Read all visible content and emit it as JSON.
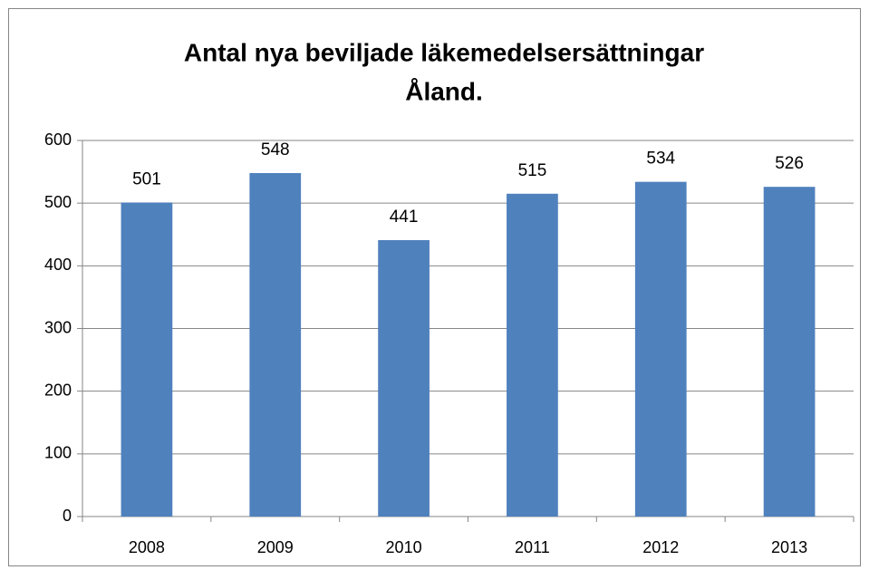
{
  "chart_data": {
    "type": "bar",
    "title": [
      "Antal nya beviljade läkemedelsersättningar",
      "Åland."
    ],
    "categories": [
      "2008",
      "2009",
      "2010",
      "2011",
      "2012",
      "2013"
    ],
    "values": [
      501,
      548,
      441,
      515,
      534,
      526
    ],
    "color": "#4f81bd",
    "ylim": [
      0,
      600
    ],
    "yticks": [
      0,
      100,
      200,
      300,
      400,
      500,
      600
    ],
    "grid": true
  }
}
